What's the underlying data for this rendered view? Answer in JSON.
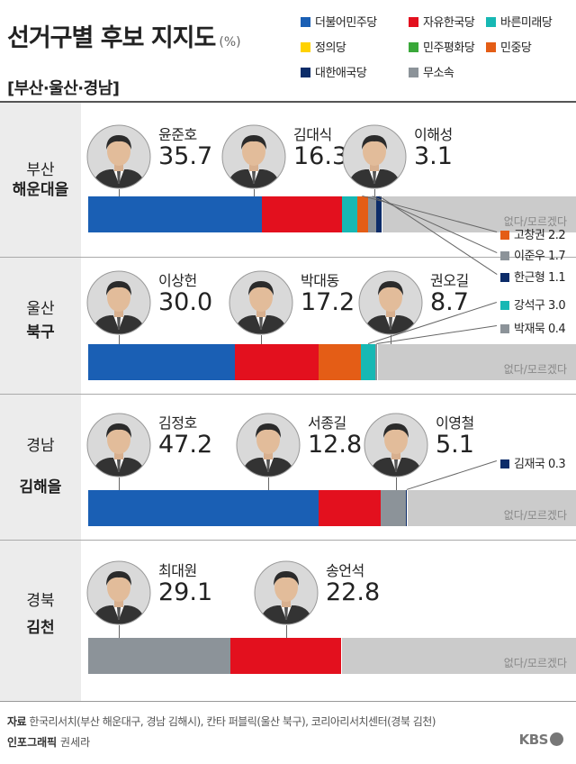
{
  "header": {
    "title": "선거구별 후보 지지도",
    "unit": "(%)",
    "subtitle": "[부산·울산·경남]"
  },
  "legend": [
    {
      "label": "더불어민주당",
      "color": "#1a5fb4"
    },
    {
      "label": "자유한국당",
      "color": "#e3101e"
    },
    {
      "label": "바른미래당",
      "color": "#17b8b4"
    },
    {
      "label": "정의당",
      "color": "#ffd200"
    },
    {
      "label": "민주평화당",
      "color": "#3aa83a"
    },
    {
      "label": "민중당",
      "color": "#e45d16"
    },
    {
      "label": "대한애국당",
      "color": "#0c2c69"
    },
    {
      "label": "무소속",
      "color": "#8c9399"
    }
  ],
  "rest_color": "#cbcbcb",
  "chart_data": [
    {
      "type": "bar",
      "city": "부산",
      "district": "해운대을",
      "series": [
        {
          "name": "윤준호",
          "party": "더불어민주당",
          "value": 35.7
        },
        {
          "name": "김대식",
          "party": "자유한국당",
          "value": 16.3
        },
        {
          "name": "이해성",
          "party": "바른미래당",
          "value": 3.1
        },
        {
          "name": "고창권",
          "party": "민중당",
          "value": 2.2
        },
        {
          "name": "이준우",
          "party": "무소속",
          "value": 1.7
        },
        {
          "name": "한근형",
          "party": "대한애국당",
          "value": 1.1
        }
      ],
      "rest_label": "없다/모르겠다"
    },
    {
      "type": "bar",
      "city": "울산",
      "district": "북구",
      "series": [
        {
          "name": "이상헌",
          "party": "더불어민주당",
          "value": 30.0
        },
        {
          "name": "박대동",
          "party": "자유한국당",
          "value": 17.2
        },
        {
          "name": "권오길",
          "party": "민중당",
          "value": 8.7
        },
        {
          "name": "강석구",
          "party": "바른미래당",
          "value": 3.0
        },
        {
          "name": "박재묵",
          "party": "무소속",
          "value": 0.4
        }
      ],
      "rest_label": "없다/모르겠다"
    },
    {
      "type": "bar",
      "city": "경남",
      "district": "김해을",
      "series": [
        {
          "name": "김정호",
          "party": "더불어민주당",
          "value": 47.2
        },
        {
          "name": "서종길",
          "party": "자유한국당",
          "value": 12.8
        },
        {
          "name": "이영철",
          "party": "무소속",
          "value": 5.1
        },
        {
          "name": "김재국",
          "party": "대한애국당",
          "value": 0.3
        }
      ],
      "rest_label": "없다/모르겠다"
    },
    {
      "type": "bar",
      "city": "경북",
      "district": "김천",
      "series": [
        {
          "name": "최대원",
          "party": "무소속",
          "value": 29.1
        },
        {
          "name": "송언석",
          "party": "자유한국당",
          "value": 22.8
        }
      ],
      "rest_label": "없다/모르겠다"
    }
  ],
  "footer": {
    "source_label": "자료",
    "source_text": "한국리서치(부산 해운대구, 경남 김해시), 칸타 퍼블릭(울산 북구), 코리아리서치센터(경북 김천)",
    "credit_label": "인포그래픽",
    "credit_name": "권세라",
    "logo": "KBS"
  }
}
